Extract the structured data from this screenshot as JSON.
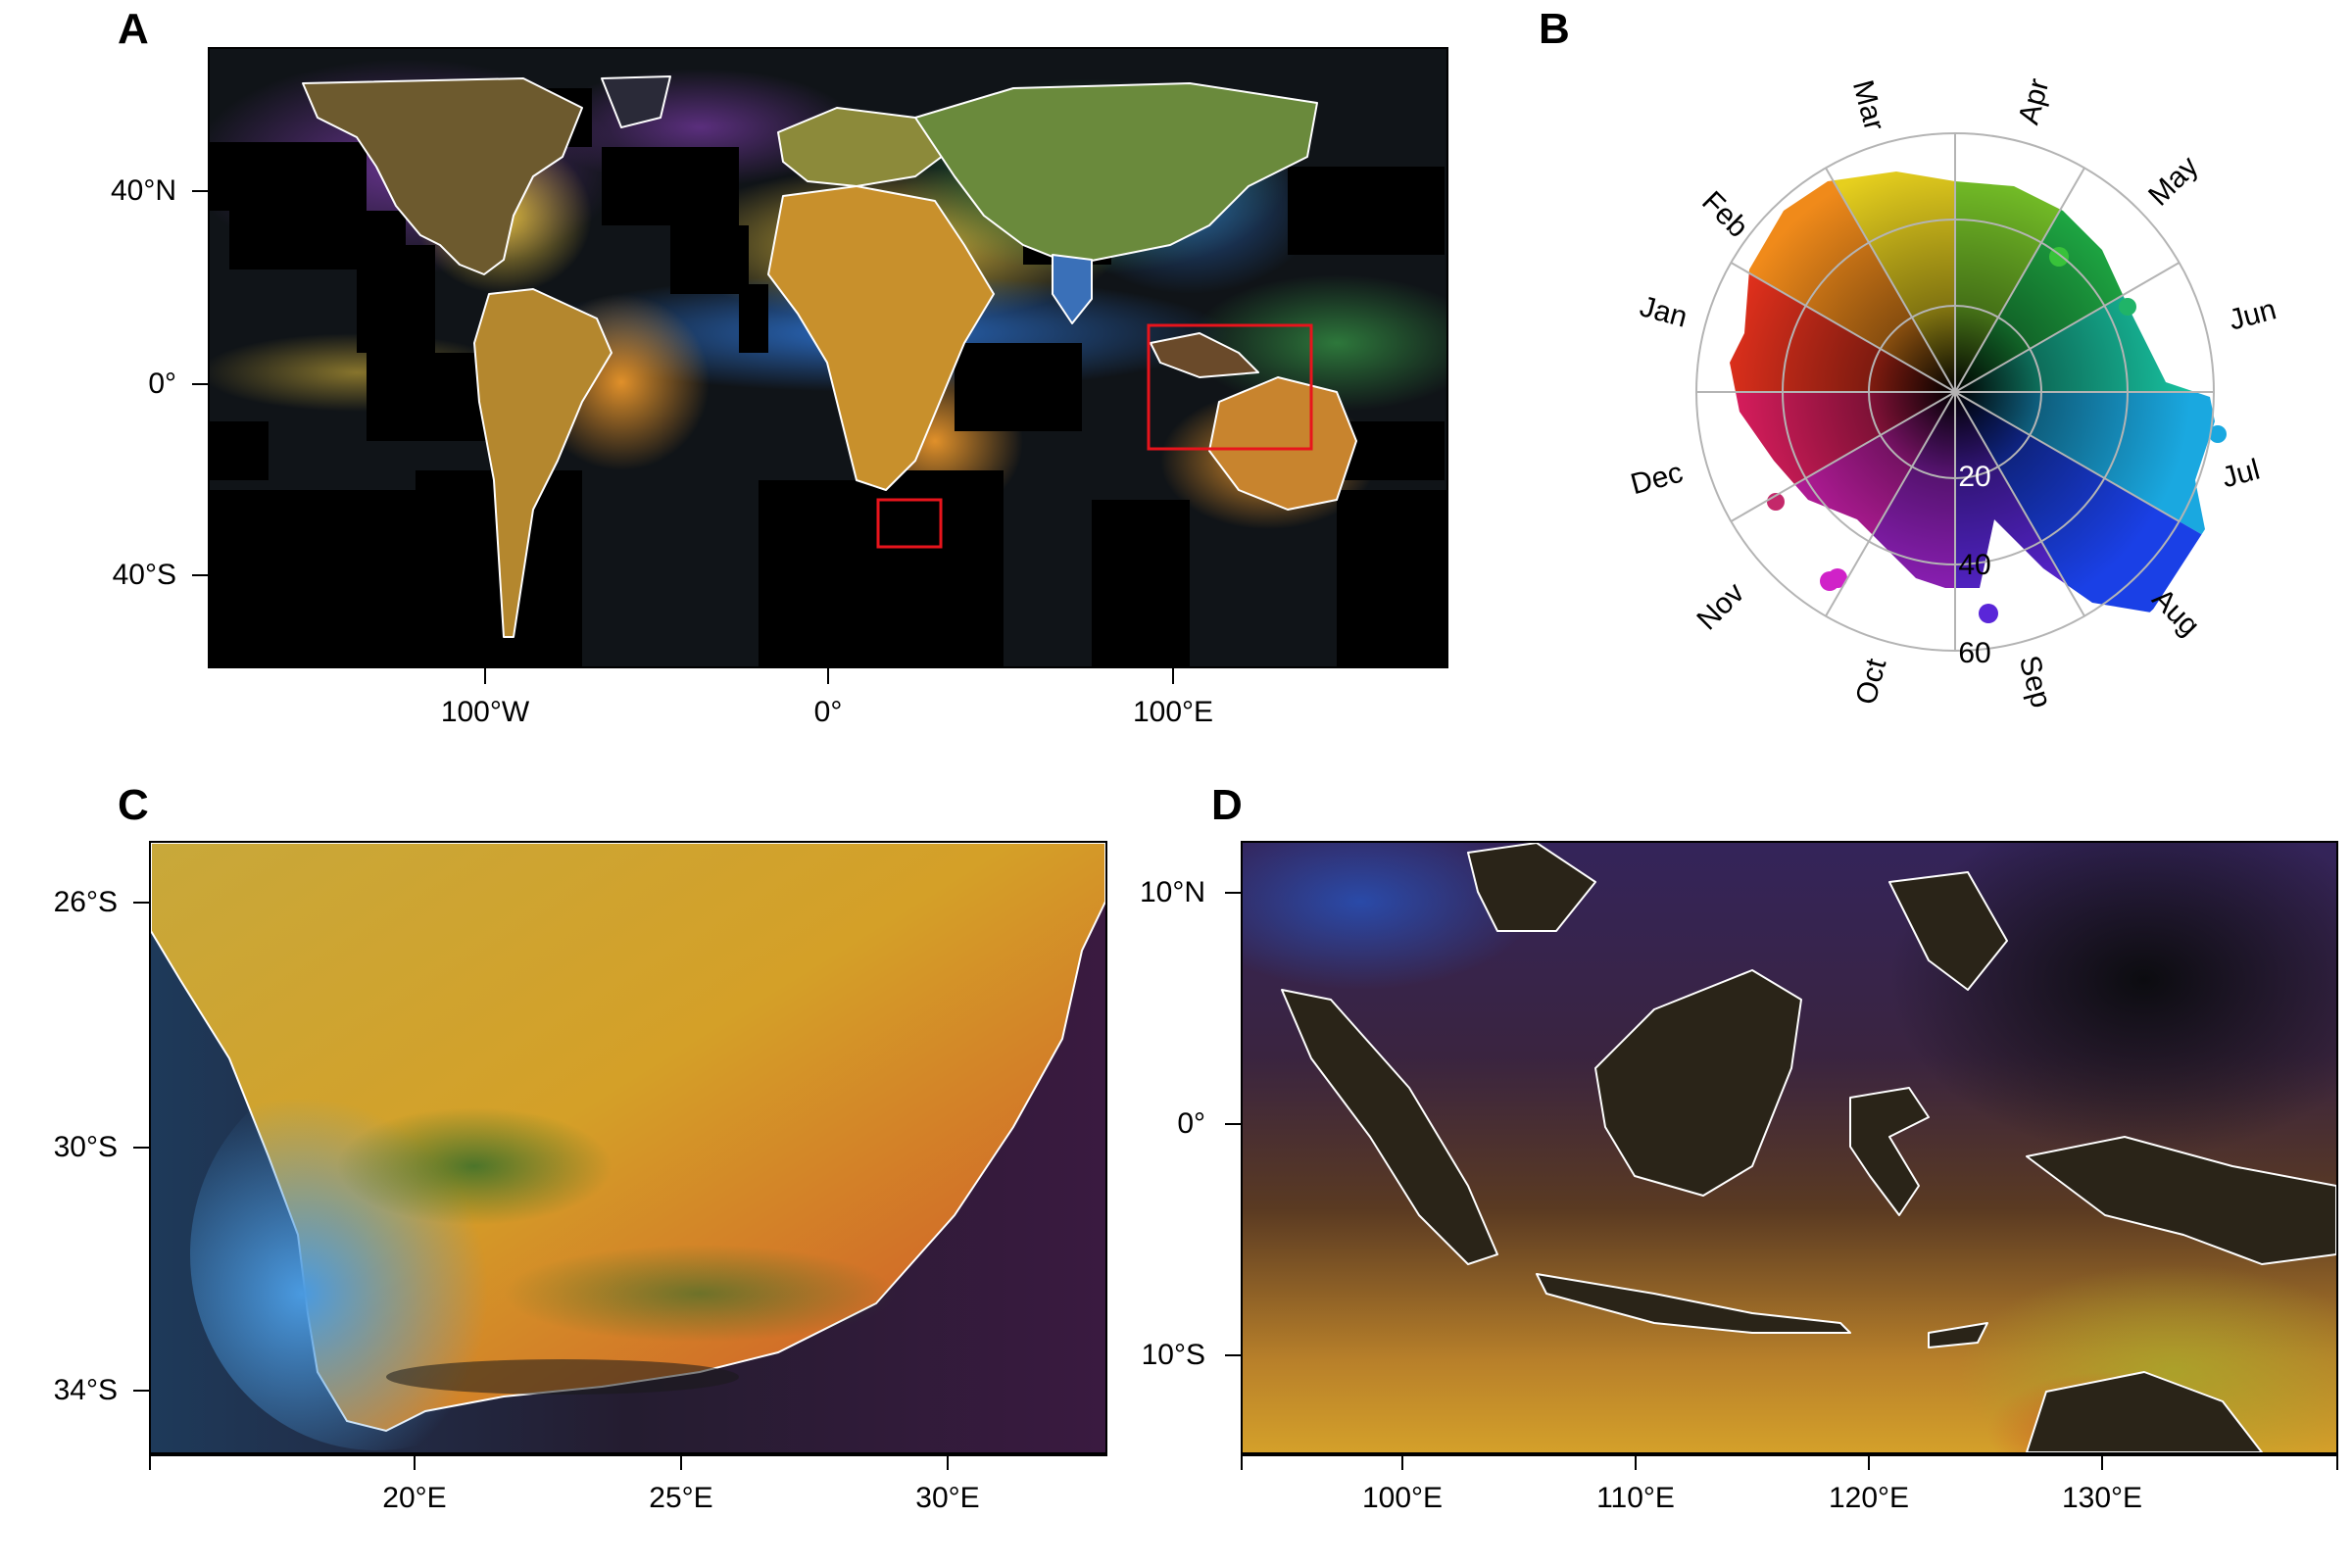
{
  "panels": {
    "a": {
      "letter": "A",
      "lat_ticks": [
        "40°N",
        "0°",
        "40°S"
      ],
      "lon_ticks": [
        "100°W",
        "0°",
        "100°E"
      ]
    },
    "b": {
      "letter": "B",
      "months": [
        "Jan",
        "Feb",
        "Mar",
        "Apr",
        "May",
        "Jun",
        "Jul",
        "Aug",
        "Sep",
        "Oct",
        "Nov",
        "Dec"
      ],
      "radial_ticks": [
        "20",
        "40",
        "60"
      ]
    },
    "c": {
      "letter": "C",
      "lat_ticks": [
        "26°S",
        "30°S",
        "34°S"
      ],
      "lon_ticks": [
        "20°E",
        "25°E",
        "30°E"
      ]
    },
    "d": {
      "letter": "D",
      "lat_ticks": [
        "10°N",
        "0°",
        "10°S"
      ],
      "lon_ticks": [
        "100°E",
        "110°E",
        "120°E",
        "130°E"
      ]
    }
  },
  "colors": {
    "highlight_box": "#e8141c",
    "grid": "#b4b4b4",
    "coast": "#ffffff"
  }
}
